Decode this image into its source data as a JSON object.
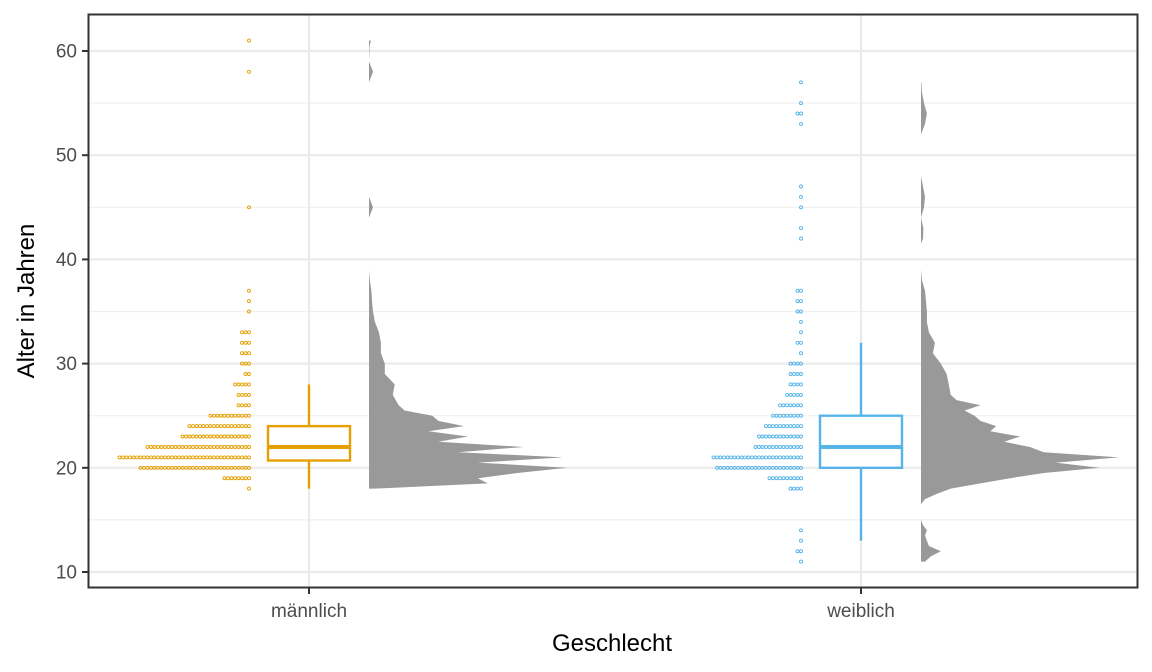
{
  "chart_data": {
    "type": "raincloud",
    "title": "",
    "xlabel": "Geschlecht",
    "ylabel": "Alter in Jahren",
    "ylim": [
      9.5,
      63.5
    ],
    "y_ticks": [
      10,
      20,
      30,
      40,
      50,
      60
    ],
    "grid": true,
    "legend": "none",
    "categories": [
      "männlich",
      "weiblich"
    ],
    "groups": [
      {
        "category": "männlich",
        "color": "#E69F00",
        "box": {
          "min": 18,
          "q1": 20.7,
          "median": 22,
          "q3": 24,
          "max": 28
        },
        "dot_counts": [
          [
            18,
            1
          ],
          [
            19,
            8
          ],
          [
            20,
            32
          ],
          [
            21,
            38
          ],
          [
            22,
            30
          ],
          [
            23,
            20
          ],
          [
            24,
            18
          ],
          [
            25,
            12
          ],
          [
            26,
            4
          ],
          [
            27,
            4
          ],
          [
            28,
            5
          ],
          [
            29,
            2
          ],
          [
            30,
            3
          ],
          [
            31,
            3
          ],
          [
            32,
            3
          ],
          [
            33,
            3
          ],
          [
            35,
            1
          ],
          [
            36,
            1
          ],
          [
            37,
            1
          ],
          [
            45,
            1
          ],
          [
            58,
            1
          ],
          [
            61,
            1
          ]
        ],
        "density": [
          [
            18,
            0.03
          ],
          [
            18.5,
            0.6
          ],
          [
            19,
            0.55
          ],
          [
            19.5,
            0.75
          ],
          [
            20,
            1.0
          ],
          [
            20.5,
            0.55
          ],
          [
            21,
            0.98
          ],
          [
            21.5,
            0.45
          ],
          [
            22,
            0.78
          ],
          [
            22.5,
            0.35
          ],
          [
            23,
            0.5
          ],
          [
            23.5,
            0.3
          ],
          [
            24,
            0.48
          ],
          [
            24.5,
            0.35
          ],
          [
            25,
            0.32
          ],
          [
            25.5,
            0.18
          ],
          [
            26,
            0.15
          ],
          [
            27,
            0.12
          ],
          [
            28,
            0.13
          ],
          [
            29,
            0.08
          ],
          [
            30,
            0.08
          ],
          [
            31,
            0.06
          ],
          [
            32,
            0.06
          ],
          [
            33,
            0.05
          ],
          [
            34,
            0.03
          ],
          [
            35,
            0.02
          ],
          [
            36,
            0.015
          ],
          [
            37,
            0.012
          ],
          [
            38,
            0.004
          ],
          [
            39,
            0
          ],
          [
            44,
            0
          ],
          [
            45,
            0.02
          ],
          [
            46,
            0
          ],
          [
            57,
            0
          ],
          [
            58,
            0.02
          ],
          [
            59,
            0
          ],
          [
            60.5,
            0.003
          ],
          [
            61,
            0.01
          ]
        ]
      },
      {
        "category": "weiblich",
        "color": "#56B4E9",
        "box": {
          "min": 13,
          "q1": 20,
          "median": 22,
          "q3": 25,
          "max": 32
        },
        "dot_counts": [
          [
            11,
            1
          ],
          [
            12,
            2
          ],
          [
            13,
            1
          ],
          [
            14,
            1
          ],
          [
            18,
            4
          ],
          [
            19,
            10
          ],
          [
            20,
            25
          ],
          [
            21,
            26
          ],
          [
            22,
            14
          ],
          [
            23,
            13
          ],
          [
            24,
            11
          ],
          [
            25,
            9
          ],
          [
            26,
            7
          ],
          [
            27,
            5
          ],
          [
            28,
            4
          ],
          [
            29,
            4
          ],
          [
            30,
            4
          ],
          [
            31,
            1
          ],
          [
            32,
            2
          ],
          [
            33,
            1
          ],
          [
            34,
            1
          ],
          [
            35,
            2
          ],
          [
            36,
            2
          ],
          [
            37,
            2
          ],
          [
            42,
            1
          ],
          [
            43,
            1
          ],
          [
            45,
            1
          ],
          [
            46,
            1
          ],
          [
            47,
            1
          ],
          [
            53,
            1
          ],
          [
            54,
            2
          ],
          [
            55,
            1
          ],
          [
            57,
            1
          ]
        ],
        "density": [
          [
            11,
            0.02
          ],
          [
            11.5,
            0.05
          ],
          [
            12,
            0.1
          ],
          [
            12.5,
            0.04
          ],
          [
            13,
            0.03
          ],
          [
            13.5,
            0.02
          ],
          [
            14,
            0.03
          ],
          [
            14.5,
            0.01
          ],
          [
            15,
            0
          ],
          [
            16.5,
            0
          ],
          [
            17,
            0.02
          ],
          [
            17.5,
            0.08
          ],
          [
            18,
            0.15
          ],
          [
            18.5,
            0.3
          ],
          [
            19,
            0.45
          ],
          [
            19.5,
            0.62
          ],
          [
            20,
            0.9
          ],
          [
            20.5,
            0.68
          ],
          [
            21,
            1.0
          ],
          [
            21.5,
            0.62
          ],
          [
            22,
            0.55
          ],
          [
            22.5,
            0.42
          ],
          [
            23,
            0.5
          ],
          [
            23.5,
            0.35
          ],
          [
            24,
            0.38
          ],
          [
            24.5,
            0.3
          ],
          [
            25,
            0.27
          ],
          [
            25.5,
            0.22
          ],
          [
            26,
            0.3
          ],
          [
            26.5,
            0.18
          ],
          [
            27,
            0.15
          ],
          [
            28,
            0.14
          ],
          [
            29,
            0.13
          ],
          [
            30,
            0.1
          ],
          [
            31,
            0.06
          ],
          [
            32,
            0.07
          ],
          [
            33,
            0.04
          ],
          [
            34,
            0.03
          ],
          [
            35,
            0.03
          ],
          [
            36,
            0.025
          ],
          [
            37,
            0.02
          ],
          [
            38,
            0.005
          ],
          [
            39,
            0
          ],
          [
            41.5,
            0
          ],
          [
            42,
            0.01
          ],
          [
            43,
            0.012
          ],
          [
            44,
            0
          ],
          [
            45,
            0.015
          ],
          [
            46,
            0.02
          ],
          [
            47,
            0.01
          ],
          [
            48,
            0
          ],
          [
            52,
            0
          ],
          [
            53,
            0.02
          ],
          [
            54,
            0.03
          ],
          [
            55,
            0.015
          ],
          [
            56,
            0.005
          ],
          [
            57,
            0.002
          ]
        ]
      }
    ]
  },
  "colors": {
    "density_fill": "#999999",
    "grid": "#ebebeb",
    "panel_border": "#333333"
  }
}
